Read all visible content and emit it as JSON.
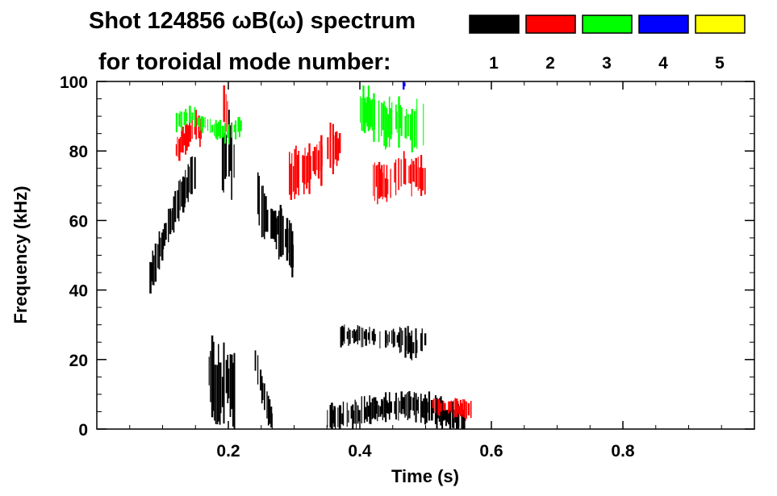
{
  "chart_data": {
    "type": "heatmap",
    "title_line1": "Shot 124856 ωB(ω) spectrum",
    "title_line2": "for toroidal mode number:",
    "xlabel": "Time (s)",
    "ylabel": "Frequency (kHz)",
    "xlim": [
      0.0,
      1.0
    ],
    "ylim": [
      0,
      100
    ],
    "x_ticks": [
      0.2,
      0.4,
      0.6,
      0.8
    ],
    "x_tick_labels": [
      "0.2",
      "0.4",
      "0.6",
      "0.8"
    ],
    "y_ticks": [
      0,
      20,
      40,
      60,
      80,
      100
    ],
    "y_tick_labels": [
      "0",
      "20",
      "40",
      "60",
      "80",
      "100"
    ],
    "legend": [
      {
        "label": "1",
        "color": "#000000"
      },
      {
        "label": "2",
        "color": "#ff0000"
      },
      {
        "label": "3",
        "color": "#00ff00"
      },
      {
        "label": "4",
        "color": "#0000ff"
      },
      {
        "label": "5",
        "color": "#ffff00"
      }
    ],
    "legend_placement": "top-right",
    "features": [
      {
        "mode": 1,
        "t": [
          0.08,
          0.09,
          0.1,
          0.11,
          0.12,
          0.13,
          0.14,
          0.15
        ],
        "f": [
          44,
          48,
          54,
          60,
          64,
          68,
          72,
          74
        ],
        "df": 4
      },
      {
        "mode": 1,
        "t": [
          0.19,
          0.2,
          0.21
        ],
        "f": [
          78,
          80,
          77
        ],
        "df": 8
      },
      {
        "mode": 1,
        "t": [
          0.24,
          0.25,
          0.26,
          0.27,
          0.28,
          0.29,
          0.3
        ],
        "f": [
          70,
          63,
          60,
          58,
          56,
          53,
          50
        ],
        "df": 5
      },
      {
        "mode": 1,
        "t": [
          0.24,
          0.25,
          0.26,
          0.27
        ],
        "f": [
          20,
          12,
          5,
          1
        ],
        "df": 3
      },
      {
        "mode": 1,
        "t": [
          0.35,
          0.38,
          0.41,
          0.44,
          0.47,
          0.5,
          0.53,
          0.56
        ],
        "f": [
          3,
          4,
          5,
          6,
          7,
          6,
          4,
          2
        ],
        "df": 3
      },
      {
        "mode": 1,
        "t": [
          0.37,
          0.4,
          0.43,
          0.46
        ],
        "f": [
          27,
          27,
          26,
          26
        ],
        "df": 2
      },
      {
        "mode": 1,
        "t": [
          0.46,
          0.48,
          0.5
        ],
        "f": [
          26,
          24,
          26
        ],
        "df": 3
      },
      {
        "mode": 1,
        "t": [
          0.17,
          0.18,
          0.19,
          0.2,
          0.21
        ],
        "f": [
          15,
          12,
          10,
          15,
          10
        ],
        "df": 8
      },
      {
        "mode": 2,
        "t": [
          0.12,
          0.13,
          0.14,
          0.15,
          0.16
        ],
        "f": [
          80,
          83,
          85,
          87,
          85
        ],
        "df": 3
      },
      {
        "mode": 2,
        "t": [
          0.19,
          0.2
        ],
        "f": [
          93,
          90
        ],
        "df": 6
      },
      {
        "mode": 2,
        "t": [
          0.29,
          0.31,
          0.33,
          0.35,
          0.37
        ],
        "f": [
          72,
          74,
          76,
          80,
          82
        ],
        "df": 5
      },
      {
        "mode": 2,
        "t": [
          0.42,
          0.44,
          0.46,
          0.48,
          0.5
        ],
        "f": [
          72,
          70,
          75,
          73,
          72
        ],
        "df": 4
      },
      {
        "mode": 2,
        "t": [
          0.51,
          0.53,
          0.55,
          0.57
        ],
        "f": [
          7,
          6,
          6,
          5
        ],
        "df": 2
      },
      {
        "mode": 3,
        "t": [
          0.4,
          0.42,
          0.44,
          0.46,
          0.48,
          0.5
        ],
        "f": [
          92,
          90,
          88,
          89,
          87,
          86
        ],
        "df": 5
      },
      {
        "mode": 3,
        "t": [
          0.12,
          0.14,
          0.16,
          0.18,
          0.2,
          0.22
        ],
        "f": [
          88,
          90,
          88,
          86,
          85,
          88
        ],
        "df": 2
      },
      {
        "mode": 4,
        "t": [
          0.465,
          0.47
        ],
        "f": [
          99,
          99
        ],
        "df": 1
      }
    ]
  }
}
